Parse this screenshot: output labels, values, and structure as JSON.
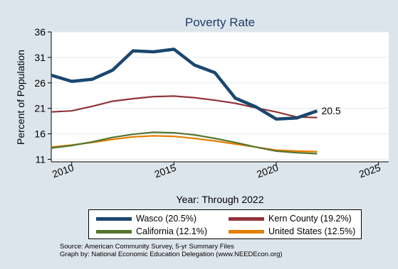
{
  "chart_data": {
    "type": "line",
    "title": "Poverty Rate",
    "ylabel": "Percent of Population",
    "xlabel": "Year: Through 2022",
    "xlim": [
      2009,
      2025.5
    ],
    "ylim": [
      10.5,
      36
    ],
    "xticks": [
      2010,
      2015,
      2020,
      2025
    ],
    "xtick_labels": [
      "2010",
      "2015",
      "2020",
      "2025"
    ],
    "yticks": [
      11,
      16,
      21,
      26,
      31,
      36
    ],
    "grid": "horizontal",
    "legend_position": "bottom",
    "x": [
      2009,
      2010,
      2011,
      2012,
      2013,
      2014,
      2015,
      2016,
      2017,
      2018,
      2019,
      2020,
      2021,
      2022
    ],
    "series": [
      {
        "name": "Wasco (20.5%)",
        "color": "#1a476f",
        "width": 4.5,
        "values": [
          27.5,
          26.3,
          26.7,
          28.5,
          32.3,
          32.1,
          32.6,
          29.5,
          28.0,
          23.0,
          21.3,
          18.9,
          19.1,
          20.5
        ]
      },
      {
        "name": "Kern County (19.2%)",
        "color": "#90353b",
        "width": 2.2,
        "values": [
          20.3,
          20.5,
          21.4,
          22.4,
          22.9,
          23.3,
          23.4,
          23.1,
          22.6,
          22.0,
          21.1,
          20.3,
          19.3,
          19.2
        ]
      },
      {
        "name": "California (12.1%)",
        "color": "#55752f",
        "width": 2.2,
        "values": [
          13.2,
          13.7,
          14.4,
          15.3,
          15.9,
          16.3,
          16.2,
          15.8,
          15.1,
          14.3,
          13.4,
          12.6,
          12.3,
          12.1
        ]
      },
      {
        "name": "United States (12.5%)",
        "color": "#e37e00",
        "width": 2.2,
        "values": [
          13.4,
          13.8,
          14.3,
          14.9,
          15.4,
          15.6,
          15.5,
          15.1,
          14.6,
          14.0,
          13.4,
          12.8,
          12.6,
          12.5
        ]
      }
    ],
    "end_label": {
      "series": 0,
      "text": "20.5"
    }
  },
  "legend": [
    {
      "label": "Wasco (20.5%)",
      "color": "#1a476f"
    },
    {
      "label": "Kern County (19.2%)",
      "color": "#90353b"
    },
    {
      "label": "California (12.1%)",
      "color": "#55752f"
    },
    {
      "label": "United States (12.5%)",
      "color": "#e37e00"
    }
  ],
  "notes": {
    "source": "Source: American Community Survey, 5-yr Summary Files",
    "credit": "Graph by: National Economic Education Delegation (www.NEEDEcon.org)"
  }
}
